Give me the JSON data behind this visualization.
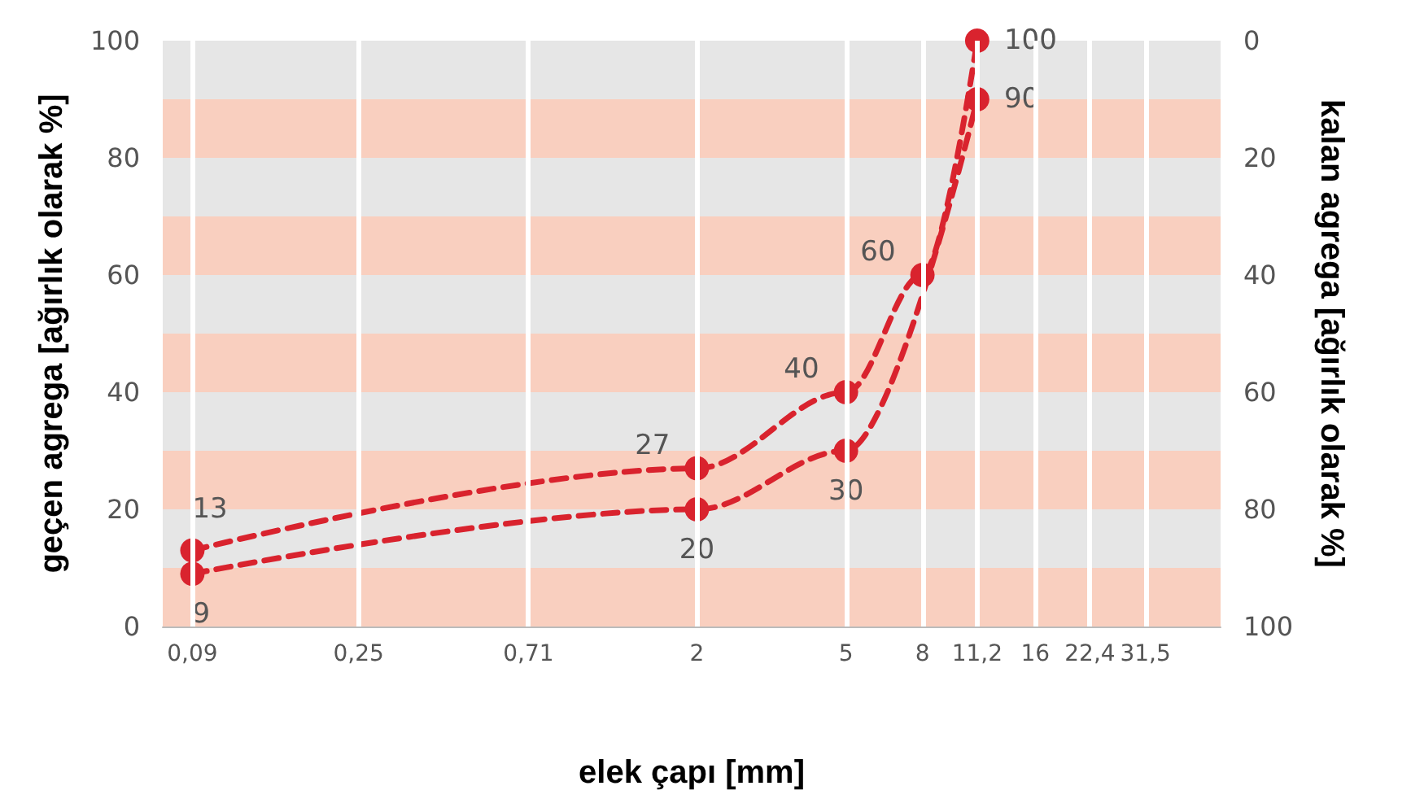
{
  "chart_data": {
    "type": "line",
    "xlabel": "elek çapı [mm]",
    "ylabel": "geçen agrega [ağırlık olarak %]",
    "y2label": "kalan agrega [ağırlık olarak %]",
    "log": "x",
    "xlim": [
      0.075,
      50
    ],
    "xticks": [
      {
        "value": 0.09,
        "label": "0,09"
      },
      {
        "value": 0.25,
        "label": "0,25"
      },
      {
        "value": 0.71,
        "label": "0,71"
      },
      2,
      5,
      8,
      {
        "value": 11.2,
        "label": "11,2"
      },
      16,
      {
        "value": 22.4,
        "label": "22,4"
      },
      {
        "value": 31.5,
        "label": "31,5"
      }
    ],
    "ylim": [
      0,
      100
    ],
    "yticks": [
      0,
      20,
      40,
      60,
      80,
      100
    ],
    "y2lim": [
      100,
      0
    ],
    "y2ticks": [
      0,
      20,
      40,
      60,
      80,
      100
    ],
    "grid": "x",
    "marker": "circle",
    "line_style": "dashed",
    "data_labels": true,
    "bands": [
      {
        "axis": "y",
        "from": 0,
        "to": 10,
        "color": "#f9cfbf"
      },
      {
        "axis": "y",
        "from": 10,
        "to": 20,
        "color": "#e6e6e6"
      },
      {
        "axis": "y",
        "from": 20,
        "to": 30,
        "color": "#f9cfbf"
      },
      {
        "axis": "y",
        "from": 30,
        "to": 40,
        "color": "#e6e6e6"
      },
      {
        "axis": "y",
        "from": 40,
        "to": 50,
        "color": "#f9cfbf"
      },
      {
        "axis": "y",
        "from": 50,
        "to": 60,
        "color": "#e6e6e6"
      },
      {
        "axis": "y",
        "from": 60,
        "to": 70,
        "color": "#f9cfbf"
      },
      {
        "axis": "y",
        "from": 70,
        "to": 80,
        "color": "#e6e6e6"
      },
      {
        "axis": "y",
        "from": 80,
        "to": 90,
        "color": "#f9cfbf"
      },
      {
        "axis": "y",
        "from": 90,
        "to": 100,
        "color": "#e6e6e6"
      }
    ],
    "series": [
      {
        "color": "#d9232e",
        "x": [
          0.09,
          2,
          5,
          8,
          11.2
        ],
        "values": [
          13,
          27,
          40,
          60,
          100
        ]
      },
      {
        "color": "#d9232e",
        "x": [
          0.09,
          2,
          5,
          11.2
        ],
        "values": [
          9,
          20,
          30,
          90
        ]
      }
    ]
  }
}
